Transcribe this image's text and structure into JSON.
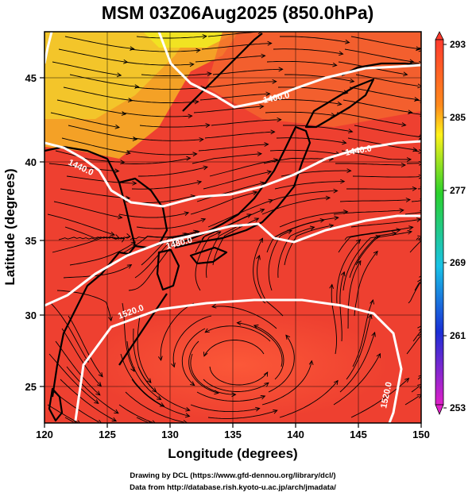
{
  "title": "MSM 03Z06Aug2025 (850.0hPa)",
  "chart_data": {
    "type": "map",
    "xlabel": "Longitude (degrees)",
    "ylabel": "Latitude  (degrees)",
    "xlim": [
      120,
      150
    ],
    "ylim": [
      22.7,
      48
    ],
    "xticks": [
      "120",
      "125",
      "130",
      "135",
      "140",
      "145",
      "150"
    ],
    "yticks": [
      "25",
      "30",
      "35",
      "40",
      "45"
    ],
    "colorbar": {
      "ticks": [
        "293",
        "285",
        "277",
        "269",
        "261",
        "253"
      ],
      "range": [
        253,
        293
      ]
    },
    "contour_labels": [
      "1400.0",
      "1440.0",
      "1440.0",
      "1480.0",
      "1520.0",
      "1520.0"
    ]
  },
  "footer": {
    "line1": "Drawing by DCL (https://www.gfd-dennou.org/library/dcl/)",
    "line2": "Data from http://database.rish.kyoto-u.ac.jp/arch/jmadata/"
  },
  "colors": {
    "warm": "#f04a34",
    "cool_yellow": "#f2e221",
    "contour": "#ffffff"
  }
}
